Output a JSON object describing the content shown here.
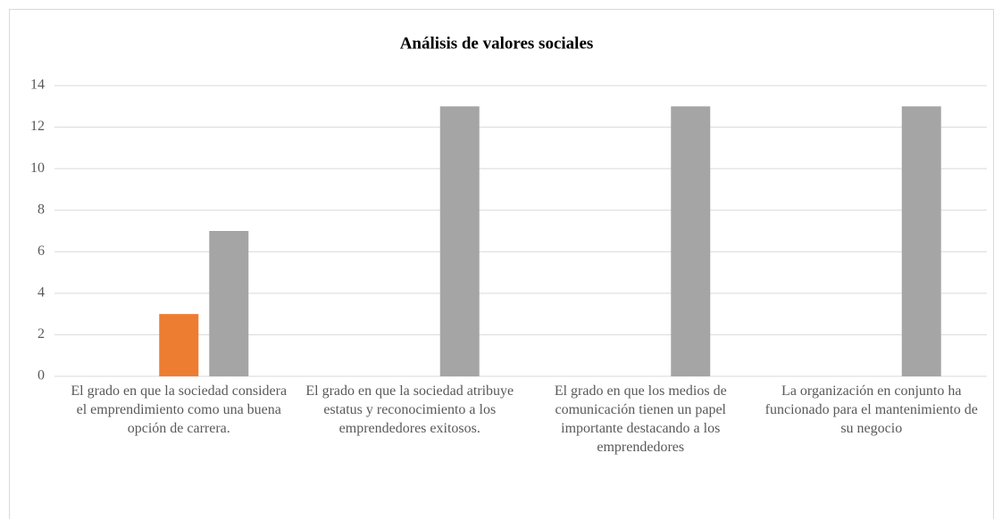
{
  "chart_data": {
    "type": "bar",
    "title": "Análisis de valores sociales",
    "categories": [
      "El grado en que la sociedad considera el emprendimiento como una buena opción de carrera.",
      "El grado en que la sociedad atribuye estatus y reconocimiento a los emprendedores exitosos.",
      "El grado en que los medios de comunicación tienen un papel importante destacando a los emprendedores",
      "La organización en conjunto ha funcionado para el mantenimiento de su negocio"
    ],
    "series": [
      {
        "color": "#4472c4",
        "values": [
          0,
          0,
          0,
          0
        ]
      },
      {
        "color": "#ed7d31",
        "values": [
          3,
          0,
          0,
          0
        ]
      },
      {
        "color": "#a5a5a5",
        "values": [
          7,
          13,
          13,
          13
        ]
      }
    ],
    "ylim": [
      0,
      14
    ],
    "yticks": [
      0,
      2,
      4,
      6,
      8,
      10,
      12,
      14
    ],
    "grid": true
  }
}
